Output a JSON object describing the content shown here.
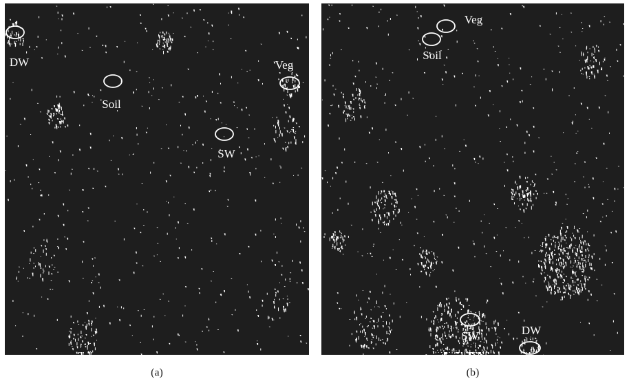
{
  "panels": [
    {
      "caption": "(a)",
      "labels": [
        "DW",
        "Soil",
        "Veg",
        "SW"
      ]
    },
    {
      "caption": "(b)",
      "labels": [
        "Veg",
        "Soil",
        "SW",
        "DW"
      ]
    }
  ]
}
